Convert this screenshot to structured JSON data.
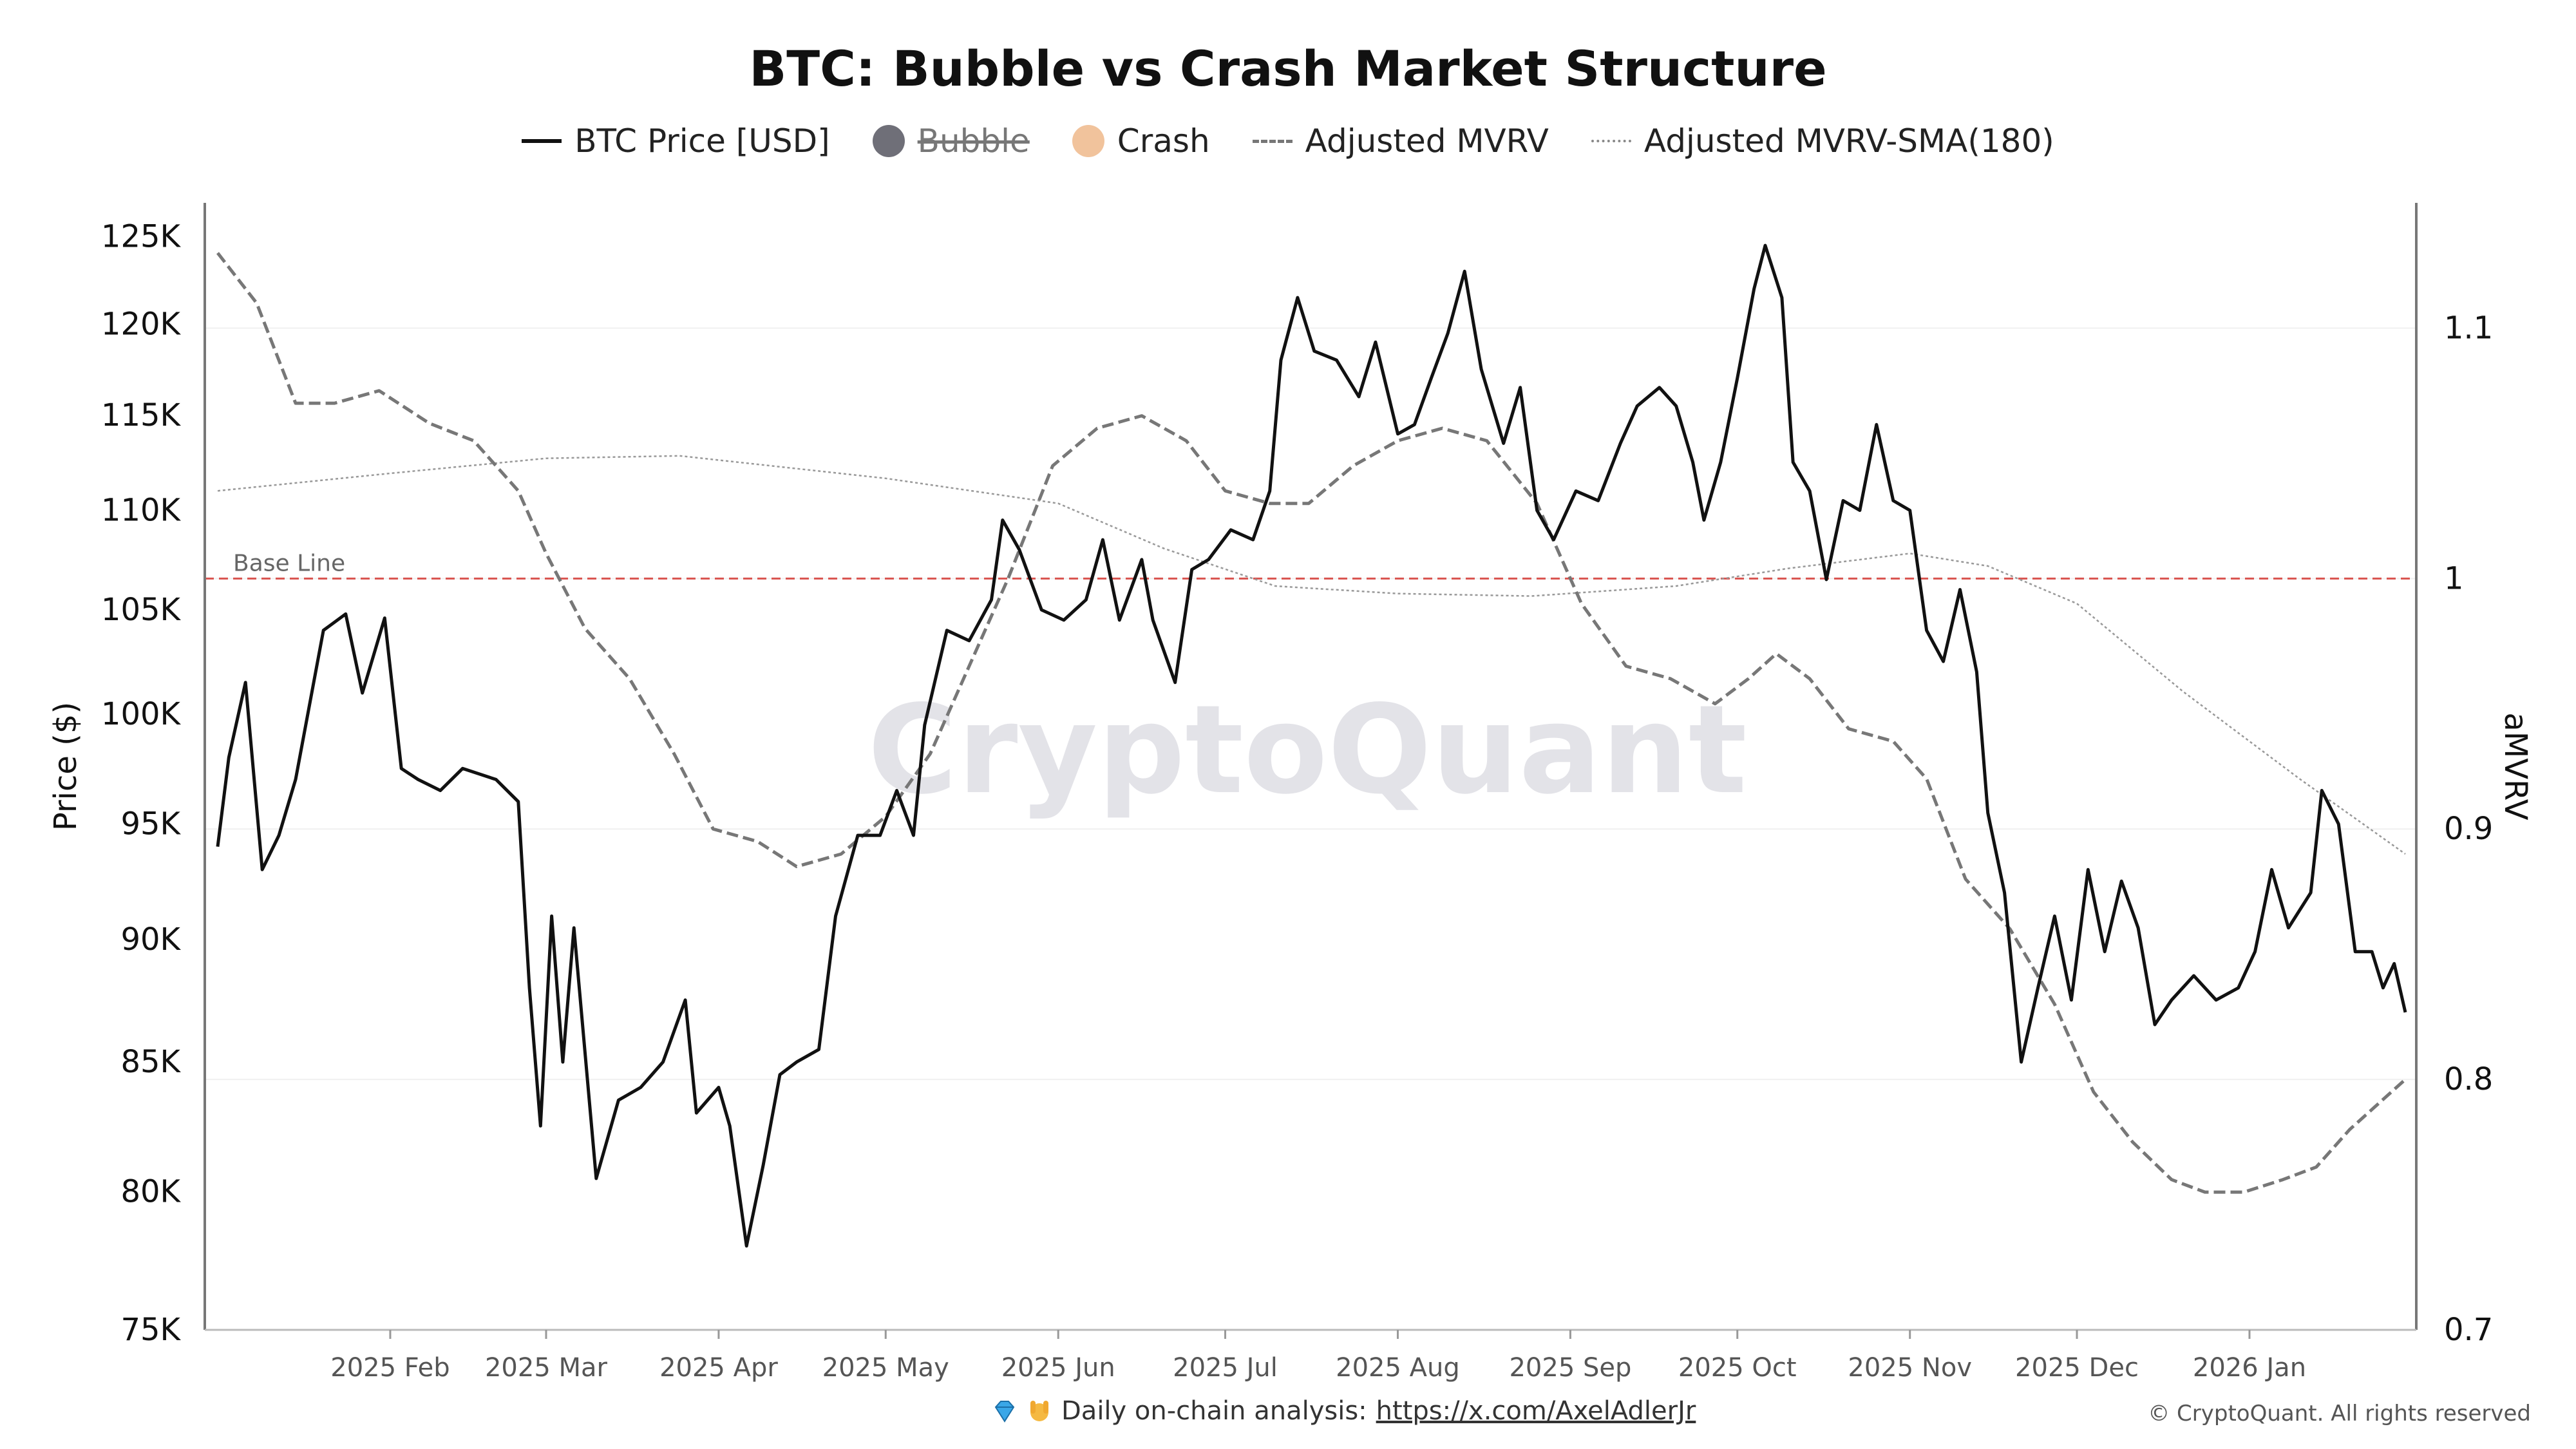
{
  "chart_data": {
    "type": "line",
    "title": "BTC: Bubble vs Crash Market Structure",
    "legend": [
      {
        "name": "BTC Price [USD]",
        "style": "solid-line",
        "color": "#111111"
      },
      {
        "name": "Bubble",
        "style": "dot",
        "color": "#6f6f78",
        "hidden": true
      },
      {
        "name": "Crash",
        "style": "dot",
        "color": "#f1c39c"
      },
      {
        "name": "Adjusted MVRV",
        "style": "dashed-line",
        "color": "#777777"
      },
      {
        "name": "Adjusted MVRV-SMA(180)",
        "style": "dotted-line",
        "color": "#888888"
      }
    ],
    "legend_position": "top-center",
    "ylabel_left": "Price ($)",
    "ylabel_right": "aMVRV",
    "y_left_scale": "log",
    "y_left_range": [
      75000,
      127000
    ],
    "y_left_ticks": [
      {
        "label": "125K",
        "value": 125000
      },
      {
        "label": "120K",
        "value": 120000
      },
      {
        "label": "115K",
        "value": 115000
      },
      {
        "label": "110K",
        "value": 110000
      },
      {
        "label": "105K",
        "value": 105000
      },
      {
        "label": "100K",
        "value": 100000
      },
      {
        "label": "95K",
        "value": 95000
      },
      {
        "label": "90K",
        "value": 90000
      },
      {
        "label": "85K",
        "value": 85000
      },
      {
        "label": "80K",
        "value": 80000
      },
      {
        "label": "75K",
        "value": 75000
      }
    ],
    "y_right_range": [
      0.7,
      1.15
    ],
    "y_right_ticks": [
      {
        "label": "1.1",
        "value": 1.1
      },
      {
        "label": "1",
        "value": 1.0
      },
      {
        "label": "0.9",
        "value": 0.9
      },
      {
        "label": "0.8",
        "value": 0.8
      },
      {
        "label": "0.7",
        "value": 0.7
      }
    ],
    "x_range": [
      "2025-01-01",
      "2026-01-29"
    ],
    "x_ticks": [
      {
        "label": "2025 Feb",
        "date": "2025-02-01"
      },
      {
        "label": "2025 Mar",
        "date": "2025-03-01"
      },
      {
        "label": "2025 Apr",
        "date": "2025-04-01"
      },
      {
        "label": "2025 May",
        "date": "2025-05-01"
      },
      {
        "label": "2025 Jun",
        "date": "2025-06-01"
      },
      {
        "label": "2025 Jul",
        "date": "2025-07-01"
      },
      {
        "label": "2025 Aug",
        "date": "2025-08-01"
      },
      {
        "label": "2025 Sep",
        "date": "2025-09-01"
      },
      {
        "label": "2025 Oct",
        "date": "2025-10-01"
      },
      {
        "label": "2025 Nov",
        "date": "2025-11-01"
      },
      {
        "label": "2025 Dec",
        "date": "2025-12-01"
      },
      {
        "label": "2026 Jan",
        "date": "2026-01-01"
      }
    ],
    "base_line": {
      "label": "Base Line",
      "value": 1.0,
      "axis": "right",
      "color": "#d9534f"
    },
    "watermark": "CryptoQuant",
    "series": [
      {
        "name": "BTC Price [USD]",
        "axis": "left",
        "points": [
          [
            "2025-01-01",
            94000
          ],
          [
            "2025-01-03",
            98000
          ],
          [
            "2025-01-06",
            101500
          ],
          [
            "2025-01-09",
            93000
          ],
          [
            "2025-01-12",
            94500
          ],
          [
            "2025-01-15",
            97000
          ],
          [
            "2025-01-20",
            104000
          ],
          [
            "2025-01-24",
            104800
          ],
          [
            "2025-01-27",
            101000
          ],
          [
            "2025-01-31",
            104600
          ],
          [
            "2025-02-03",
            97500
          ],
          [
            "2025-02-06",
            97000
          ],
          [
            "2025-02-10",
            96500
          ],
          [
            "2025-02-14",
            97500
          ],
          [
            "2025-02-20",
            97000
          ],
          [
            "2025-02-24",
            96000
          ],
          [
            "2025-02-26",
            88000
          ],
          [
            "2025-02-28",
            82500
          ],
          [
            "2025-03-02",
            91000
          ],
          [
            "2025-03-04",
            85000
          ],
          [
            "2025-03-06",
            90500
          ],
          [
            "2025-03-10",
            80500
          ],
          [
            "2025-03-14",
            83500
          ],
          [
            "2025-03-18",
            84000
          ],
          [
            "2025-03-22",
            85000
          ],
          [
            "2025-03-26",
            87500
          ],
          [
            "2025-03-28",
            83000
          ],
          [
            "2025-04-01",
            84000
          ],
          [
            "2025-04-03",
            82500
          ],
          [
            "2025-04-06",
            78000
          ],
          [
            "2025-04-09",
            81000
          ],
          [
            "2025-04-12",
            84500
          ],
          [
            "2025-04-15",
            85000
          ],
          [
            "2025-04-19",
            85500
          ],
          [
            "2025-04-22",
            91000
          ],
          [
            "2025-04-26",
            94500
          ],
          [
            "2025-04-30",
            94500
          ],
          [
            "2025-05-03",
            96500
          ],
          [
            "2025-05-06",
            94500
          ],
          [
            "2025-05-08",
            99500
          ],
          [
            "2025-05-12",
            104000
          ],
          [
            "2025-05-16",
            103500
          ],
          [
            "2025-05-20",
            105500
          ],
          [
            "2025-05-22",
            109500
          ],
          [
            "2025-05-25",
            108000
          ],
          [
            "2025-05-29",
            105000
          ],
          [
            "2025-06-02",
            104500
          ],
          [
            "2025-06-06",
            105500
          ],
          [
            "2025-06-09",
            108500
          ],
          [
            "2025-06-12",
            104500
          ],
          [
            "2025-06-16",
            107500
          ],
          [
            "2025-06-18",
            104500
          ],
          [
            "2025-06-22",
            101500
          ],
          [
            "2025-06-25",
            107000
          ],
          [
            "2025-06-28",
            107500
          ],
          [
            "2025-07-02",
            109000
          ],
          [
            "2025-07-06",
            108500
          ],
          [
            "2025-07-09",
            111000
          ],
          [
            "2025-07-11",
            118000
          ],
          [
            "2025-07-14",
            121500
          ],
          [
            "2025-07-17",
            118500
          ],
          [
            "2025-07-21",
            118000
          ],
          [
            "2025-07-25",
            116000
          ],
          [
            "2025-07-28",
            119000
          ],
          [
            "2025-08-01",
            114000
          ],
          [
            "2025-08-04",
            114500
          ],
          [
            "2025-08-07",
            117000
          ],
          [
            "2025-08-10",
            119500
          ],
          [
            "2025-08-13",
            123000
          ],
          [
            "2025-08-16",
            117500
          ],
          [
            "2025-08-20",
            113500
          ],
          [
            "2025-08-23",
            116500
          ],
          [
            "2025-08-26",
            110000
          ],
          [
            "2025-08-29",
            108500
          ],
          [
            "2025-09-02",
            111000
          ],
          [
            "2025-09-06",
            110500
          ],
          [
            "2025-09-10",
            113500
          ],
          [
            "2025-09-13",
            115500
          ],
          [
            "2025-09-17",
            116500
          ],
          [
            "2025-09-20",
            115500
          ],
          [
            "2025-09-23",
            112500
          ],
          [
            "2025-09-25",
            109500
          ],
          [
            "2025-09-28",
            112500
          ],
          [
            "2025-10-01",
            117000
          ],
          [
            "2025-10-04",
            122000
          ],
          [
            "2025-10-06",
            124500
          ],
          [
            "2025-10-09",
            121500
          ],
          [
            "2025-10-11",
            112500
          ],
          [
            "2025-10-14",
            111000
          ],
          [
            "2025-10-17",
            106500
          ],
          [
            "2025-10-20",
            110500
          ],
          [
            "2025-10-23",
            110000
          ],
          [
            "2025-10-26",
            114500
          ],
          [
            "2025-10-29",
            110500
          ],
          [
            "2025-11-01",
            110000
          ],
          [
            "2025-11-04",
            104000
          ],
          [
            "2025-11-07",
            102500
          ],
          [
            "2025-11-10",
            106000
          ],
          [
            "2025-11-13",
            102000
          ],
          [
            "2025-11-15",
            95500
          ],
          [
            "2025-11-18",
            92000
          ],
          [
            "2025-11-21",
            85000
          ],
          [
            "2025-11-24",
            88000
          ],
          [
            "2025-11-27",
            91000
          ],
          [
            "2025-11-30",
            87500
          ],
          [
            "2025-12-03",
            93000
          ],
          [
            "2025-12-06",
            89500
          ],
          [
            "2025-12-09",
            92500
          ],
          [
            "2025-12-12",
            90500
          ],
          [
            "2025-12-15",
            86500
          ],
          [
            "2025-12-18",
            87500
          ],
          [
            "2025-12-22",
            88500
          ],
          [
            "2025-12-26",
            87500
          ],
          [
            "2025-12-30",
            88000
          ],
          [
            "2026-01-02",
            89500
          ],
          [
            "2026-01-05",
            93000
          ],
          [
            "2026-01-08",
            90500
          ],
          [
            "2026-01-12",
            92000
          ],
          [
            "2026-01-14",
            96500
          ],
          [
            "2026-01-17",
            95000
          ],
          [
            "2026-01-20",
            89500
          ],
          [
            "2026-01-23",
            89500
          ],
          [
            "2026-01-25",
            88000
          ],
          [
            "2026-01-27",
            89000
          ],
          [
            "2026-01-29",
            87000
          ]
        ]
      },
      {
        "name": "Adjusted MVRV",
        "axis": "right",
        "points": [
          [
            "2025-01-01",
            1.13
          ],
          [
            "2025-01-08",
            1.11
          ],
          [
            "2025-01-15",
            1.07
          ],
          [
            "2025-01-22",
            1.07
          ],
          [
            "2025-01-30",
            1.075
          ],
          [
            "2025-02-08",
            1.062
          ],
          [
            "2025-02-16",
            1.055
          ],
          [
            "2025-02-24",
            1.035
          ],
          [
            "2025-03-01",
            1.01
          ],
          [
            "2025-03-08",
            0.98
          ],
          [
            "2025-03-16",
            0.96
          ],
          [
            "2025-03-24",
            0.93
          ],
          [
            "2025-03-31",
            0.9
          ],
          [
            "2025-04-08",
            0.895
          ],
          [
            "2025-04-15",
            0.885
          ],
          [
            "2025-04-23",
            0.89
          ],
          [
            "2025-05-01",
            0.905
          ],
          [
            "2025-05-09",
            0.93
          ],
          [
            "2025-05-16",
            0.965
          ],
          [
            "2025-05-23",
            1.0
          ],
          [
            "2025-05-31",
            1.045
          ],
          [
            "2025-06-08",
            1.06
          ],
          [
            "2025-06-16",
            1.065
          ],
          [
            "2025-06-24",
            1.055
          ],
          [
            "2025-07-01",
            1.035
          ],
          [
            "2025-07-09",
            1.03
          ],
          [
            "2025-07-16",
            1.03
          ],
          [
            "2025-07-24",
            1.045
          ],
          [
            "2025-08-01",
            1.055
          ],
          [
            "2025-08-09",
            1.06
          ],
          [
            "2025-08-17",
            1.055
          ],
          [
            "2025-08-26",
            1.03
          ],
          [
            "2025-09-03",
            0.99
          ],
          [
            "2025-09-11",
            0.965
          ],
          [
            "2025-09-19",
            0.96
          ],
          [
            "2025-09-27",
            0.95
          ],
          [
            "2025-10-03",
            0.96
          ],
          [
            "2025-10-08",
            0.97
          ],
          [
            "2025-10-14",
            0.96
          ],
          [
            "2025-10-21",
            0.94
          ],
          [
            "2025-10-29",
            0.935
          ],
          [
            "2025-11-04",
            0.92
          ],
          [
            "2025-11-11",
            0.88
          ],
          [
            "2025-11-19",
            0.86
          ],
          [
            "2025-11-27",
            0.83
          ],
          [
            "2025-12-04",
            0.795
          ],
          [
            "2025-12-11",
            0.775
          ],
          [
            "2025-12-18",
            0.76
          ],
          [
            "2025-12-24",
            0.755
          ],
          [
            "2025-12-31",
            0.755
          ],
          [
            "2026-01-07",
            0.76
          ],
          [
            "2026-01-13",
            0.765
          ],
          [
            "2026-01-19",
            0.78
          ],
          [
            "2026-01-24",
            0.79
          ],
          [
            "2026-01-29",
            0.8
          ]
        ]
      },
      {
        "name": "Adjusted MVRV-SMA(180)",
        "axis": "right",
        "points": [
          [
            "2025-01-01",
            1.035
          ],
          [
            "2025-02-01",
            1.042
          ],
          [
            "2025-03-01",
            1.048
          ],
          [
            "2025-03-25",
            1.049
          ],
          [
            "2025-05-01",
            1.04
          ],
          [
            "2025-06-01",
            1.03
          ],
          [
            "2025-06-20",
            1.012
          ],
          [
            "2025-07-10",
            0.997
          ],
          [
            "2025-08-01",
            0.994
          ],
          [
            "2025-08-25",
            0.993
          ],
          [
            "2025-09-20",
            0.997
          ],
          [
            "2025-10-10",
            1.004
          ],
          [
            "2025-11-01",
            1.01
          ],
          [
            "2025-11-15",
            1.005
          ],
          [
            "2025-12-01",
            0.99
          ],
          [
            "2025-12-20",
            0.955
          ],
          [
            "2026-01-10",
            0.92
          ],
          [
            "2026-01-29",
            0.89
          ]
        ]
      }
    ]
  },
  "footer": {
    "analysis_text": "Daily on-chain analysis:",
    "analysis_link": "https://x.com/AxelAdlerJr",
    "copyright": "© CryptoQuant. All rights reserved"
  }
}
